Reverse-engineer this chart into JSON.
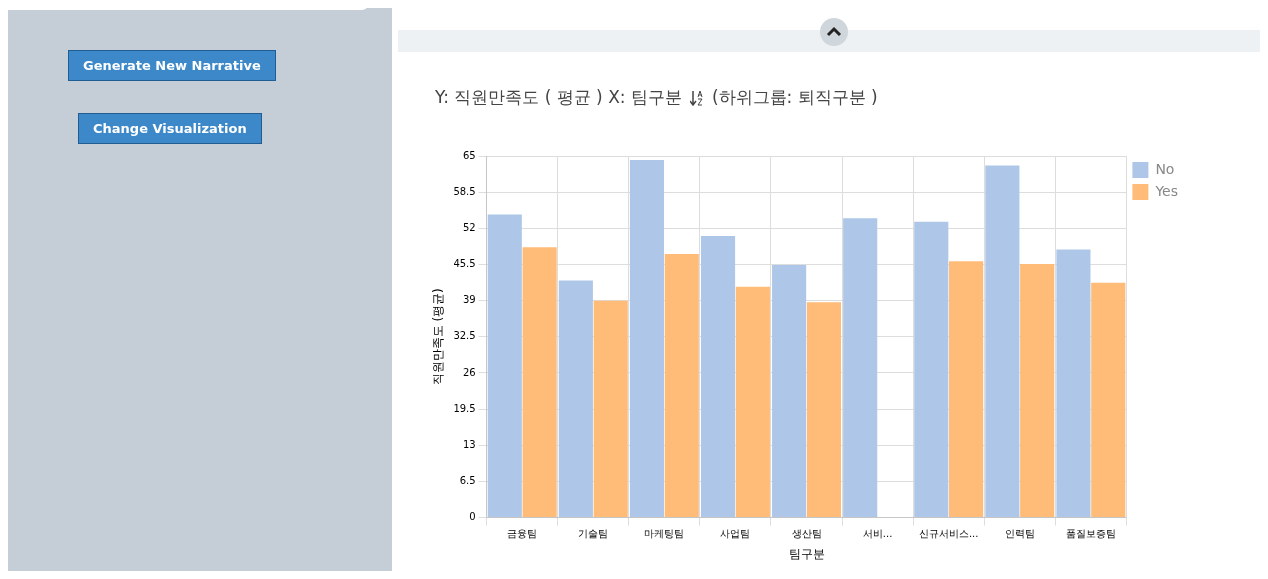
{
  "chart_data": {
    "type": "bar",
    "title": "Y: 직원만족도 ( 평균 ) X: 팀구분",
    "subtitle": "(하위그룹: 퇴직구분 )",
    "xlabel": "팀구분",
    "ylabel": "직원만족도 (평균)",
    "categories": [
      "금융팀",
      "기술팀",
      "마케팅팀",
      "사업팀",
      "생산팀",
      "서비...",
      "신규서비스...",
      "인력팀",
      "품질보증팀"
    ],
    "series": [
      {
        "name": "No",
        "color": "#aec7e8",
        "values": [
          54.5,
          42.6,
          64.3,
          50.6,
          45.4,
          53.8,
          53.2,
          63.3,
          48.2
        ]
      },
      {
        "name": "Yes",
        "color": "#ffbb78",
        "values": [
          48.6,
          39.0,
          47.4,
          41.5,
          38.7,
          null,
          46.1,
          45.6,
          42.2
        ]
      }
    ],
    "ylim": [
      0,
      65
    ],
    "yticks": [
      0,
      6.5,
      13,
      19.5,
      26,
      32.5,
      39,
      45.5,
      52,
      58.5,
      65
    ],
    "grid": true,
    "legend": "top right",
    "annotations": [
      "Generate New Narrative",
      "Change Visualization"
    ]
  }
}
